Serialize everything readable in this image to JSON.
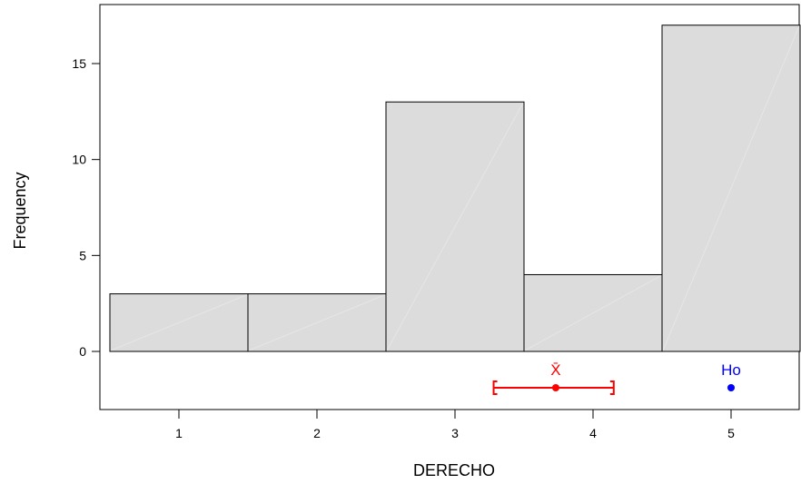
{
  "chart_data": {
    "type": "bar",
    "xlabel": "DERECHO",
    "ylabel": "Frequency",
    "categories": [
      "1",
      "2",
      "3",
      "4",
      "5"
    ],
    "values": [
      3,
      3,
      13,
      4,
      17
    ],
    "bin_centers": [
      1,
      2,
      3,
      4,
      5
    ],
    "xlim": [
      0.5,
      5.5
    ],
    "ylim": [
      0,
      18
    ],
    "y_ticks": [
      0,
      5,
      10,
      15
    ],
    "x_ticks": [
      1,
      2,
      3,
      4,
      5
    ],
    "grid": false,
    "bar_color": "#dcdcdc",
    "annotations": {
      "mean": {
        "label": "X̄",
        "value": 3.73,
        "ci": [
          3.28,
          4.15
        ],
        "color": "#ff0000"
      },
      "ho": {
        "label": "Ho",
        "value": 5,
        "color": "#0000ff"
      }
    }
  }
}
